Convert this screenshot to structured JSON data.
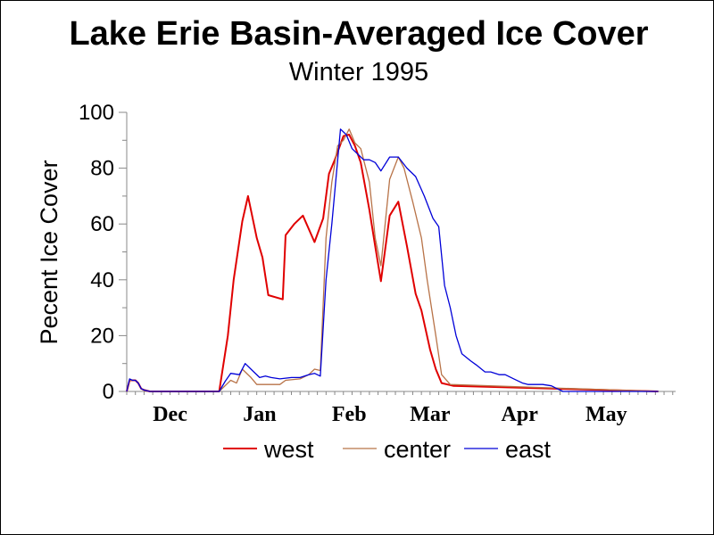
{
  "chart_data": {
    "type": "line",
    "title": "Lake Erie Basin-Averaged Ice Cover",
    "subtitle": "Winter 1995",
    "ylabel": "Pecent Ice Cover",
    "xlabel": "",
    "ylim": [
      0,
      100
    ],
    "yticks": [
      0,
      20,
      40,
      60,
      80,
      100
    ],
    "xlim": [
      0,
      190
    ],
    "month_labels": [
      "Dec",
      "Jan",
      "Feb",
      "Mar",
      "Apr",
      "May"
    ],
    "month_positions": [
      15,
      46,
      77,
      105,
      136,
      166
    ],
    "legend_position": "bottom",
    "grid": false,
    "series": [
      {
        "name": "west",
        "color": "#e00000",
        "points": [
          [
            0,
            0
          ],
          [
            1,
            4
          ],
          [
            2,
            4
          ],
          [
            3,
            4
          ],
          [
            4,
            3
          ],
          [
            5,
            1
          ],
          [
            6,
            0.5
          ],
          [
            8,
            0
          ],
          [
            30,
            0
          ],
          [
            32,
            0
          ],
          [
            35,
            20
          ],
          [
            37,
            40
          ],
          [
            40,
            61
          ],
          [
            42,
            70
          ],
          [
            45,
            55
          ],
          [
            47,
            48
          ],
          [
            49,
            34.5
          ],
          [
            54,
            33
          ],
          [
            55,
            56
          ],
          [
            58,
            60
          ],
          [
            61,
            63
          ],
          [
            65,
            53.5
          ],
          [
            68,
            62
          ],
          [
            70,
            78
          ],
          [
            72,
            83
          ],
          [
            75,
            91.5
          ],
          [
            77,
            92
          ],
          [
            79,
            88
          ],
          [
            81,
            82
          ],
          [
            84,
            65
          ],
          [
            86,
            52
          ],
          [
            88,
            39.5
          ],
          [
            91,
            63
          ],
          [
            94,
            68
          ],
          [
            97,
            52
          ],
          [
            100,
            35
          ],
          [
            102,
            29
          ],
          [
            105,
            15
          ],
          [
            107,
            8
          ],
          [
            109,
            3
          ],
          [
            113,
            2
          ],
          [
            184,
            0
          ]
        ]
      },
      {
        "name": "center",
        "color": "#b87348",
        "points": [
          [
            0,
            0
          ],
          [
            1,
            4
          ],
          [
            2,
            4
          ],
          [
            3,
            4
          ],
          [
            4,
            3
          ],
          [
            5,
            1
          ],
          [
            6,
            0.5
          ],
          [
            8,
            0
          ],
          [
            30,
            0
          ],
          [
            32,
            0
          ],
          [
            36,
            4
          ],
          [
            38,
            3
          ],
          [
            40,
            8
          ],
          [
            43,
            5
          ],
          [
            45,
            2.5
          ],
          [
            48,
            2.5
          ],
          [
            51,
            2.5
          ],
          [
            53,
            2.5
          ],
          [
            55,
            4
          ],
          [
            60,
            4.5
          ],
          [
            63,
            6
          ],
          [
            65,
            8
          ],
          [
            67,
            7.5
          ],
          [
            69,
            55
          ],
          [
            71,
            75
          ],
          [
            73,
            88
          ],
          [
            75,
            90
          ],
          [
            77,
            94
          ],
          [
            79,
            89
          ],
          [
            81,
            87
          ],
          [
            84,
            75
          ],
          [
            86,
            55
          ],
          [
            88,
            45
          ],
          [
            91,
            76
          ],
          [
            94,
            84
          ],
          [
            96,
            80
          ],
          [
            99,
            68
          ],
          [
            102,
            55
          ],
          [
            104,
            40
          ],
          [
            107,
            20
          ],
          [
            109,
            6
          ],
          [
            112,
            2.5
          ],
          [
            184,
            0
          ]
        ]
      },
      {
        "name": "east",
        "color": "#0000d8",
        "points": [
          [
            0,
            0
          ],
          [
            1,
            4.5
          ],
          [
            2,
            4
          ],
          [
            3,
            4
          ],
          [
            4,
            3
          ],
          [
            5,
            1
          ],
          [
            6,
            0.5
          ],
          [
            8,
            0
          ],
          [
            30,
            0
          ],
          [
            32,
            0
          ],
          [
            34,
            3.5
          ],
          [
            36,
            6.5
          ],
          [
            39,
            6
          ],
          [
            41,
            10
          ],
          [
            44,
            7
          ],
          [
            46,
            5
          ],
          [
            48,
            5.5
          ],
          [
            50,
            5
          ],
          [
            53,
            4.5
          ],
          [
            57,
            5
          ],
          [
            60,
            5
          ],
          [
            63,
            6
          ],
          [
            65,
            6.5
          ],
          [
            67,
            5.5
          ],
          [
            69,
            40
          ],
          [
            71,
            60
          ],
          [
            74,
            94
          ],
          [
            76,
            92
          ],
          [
            78,
            87
          ],
          [
            80,
            85
          ],
          [
            82,
            83
          ],
          [
            84,
            83
          ],
          [
            86,
            82
          ],
          [
            88,
            79
          ],
          [
            91,
            84
          ],
          [
            94,
            84
          ],
          [
            97,
            80
          ],
          [
            100,
            77
          ],
          [
            103,
            70
          ],
          [
            106,
            62
          ],
          [
            108,
            59
          ],
          [
            110,
            38
          ],
          [
            112,
            30
          ],
          [
            114,
            20
          ],
          [
            116,
            13.5
          ],
          [
            119,
            11
          ],
          [
            121,
            9.5
          ],
          [
            124,
            7
          ],
          [
            126,
            7
          ],
          [
            129,
            6
          ],
          [
            131,
            6
          ],
          [
            134,
            4.5
          ],
          [
            137,
            3
          ],
          [
            139,
            2.5
          ],
          [
            144,
            2.5
          ],
          [
            147,
            2
          ],
          [
            149,
            1
          ],
          [
            151,
            0
          ],
          [
            184,
            0
          ]
        ]
      }
    ]
  }
}
